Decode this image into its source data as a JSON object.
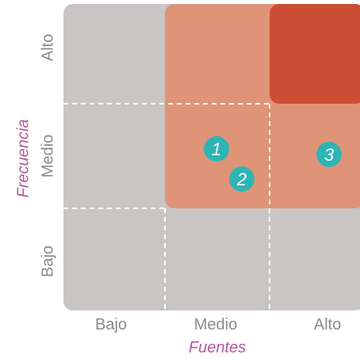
{
  "matrix": {
    "x_axis": {
      "title": "Fuentes",
      "levels": [
        "Bajo",
        "Medio",
        "Alto"
      ]
    },
    "y_axis": {
      "title": "Frecuencia",
      "levels": [
        "Bajo",
        "Medio",
        "Alto"
      ]
    },
    "zones": [
      {
        "name": "high-risk-zone",
        "color": "#cb4e34",
        "cells": [
          "Alto-Alto"
        ]
      },
      {
        "name": "medium-risk-zone",
        "color": "#e09477",
        "cells": [
          "Medio-Medio",
          "Medio-Alto",
          "Alto-Medio",
          "Alto-Alto"
        ]
      },
      {
        "name": "low-risk-zone",
        "color": "#c9c5c5",
        "cells": [
          "Bajo-*",
          "*-Bajo"
        ]
      }
    ],
    "markers": [
      {
        "label": "1",
        "fuentes": "Medio",
        "frecuencia": "Medio"
      },
      {
        "label": "2",
        "fuentes": "Medio",
        "frecuencia": "Medio"
      },
      {
        "label": "3",
        "fuentes": "Alto",
        "frecuencia": "Medio"
      }
    ],
    "marker_color": "#2fb4b4"
  }
}
